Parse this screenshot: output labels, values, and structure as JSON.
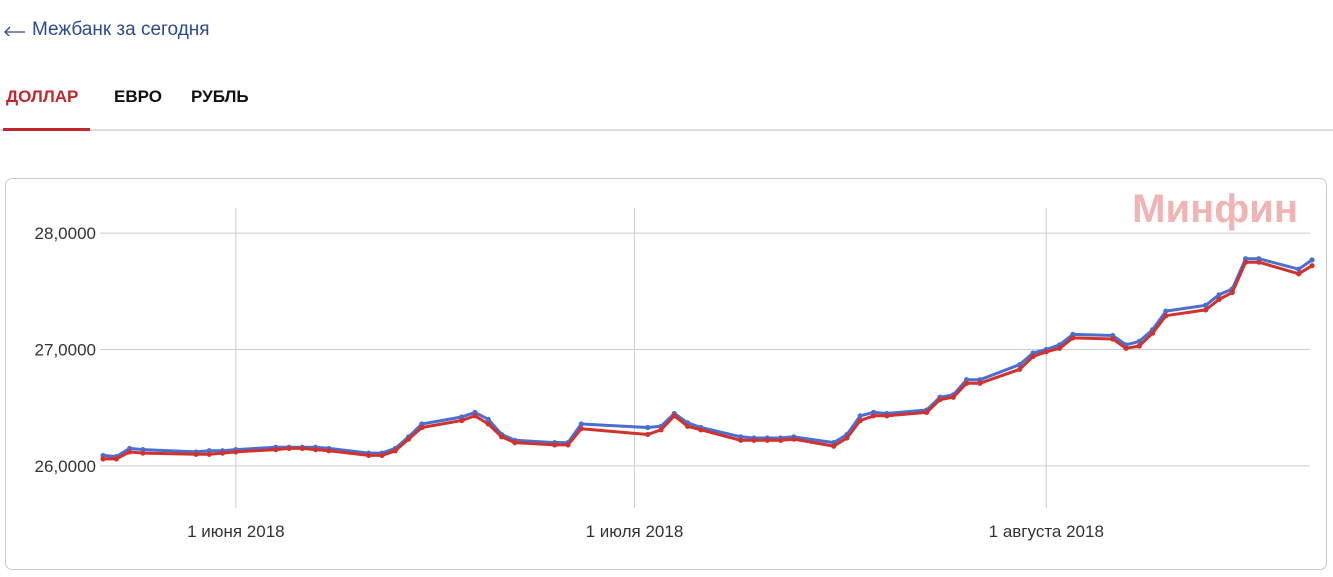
{
  "header": {
    "back_link": "Межбанк за сегодня"
  },
  "tabs": [
    {
      "label": "ДОЛЛАР",
      "active": true
    },
    {
      "label": "ЕВРО",
      "active": false
    },
    {
      "label": "РУБЛЬ",
      "active": false
    }
  ],
  "chart_data": {
    "type": "line",
    "watermark": "Минфин",
    "x": [
      "2018-05-22",
      "2018-05-23",
      "2018-05-24",
      "2018-05-25",
      "2018-05-29",
      "2018-05-30",
      "2018-05-31",
      "2018-06-01",
      "2018-06-04",
      "2018-06-05",
      "2018-06-06",
      "2018-06-07",
      "2018-06-08",
      "2018-06-11",
      "2018-06-12",
      "2018-06-13",
      "2018-06-14",
      "2018-06-15",
      "2018-06-18",
      "2018-06-19",
      "2018-06-20",
      "2018-06-21",
      "2018-06-22",
      "2018-06-25",
      "2018-06-26",
      "2018-06-27",
      "2018-07-02",
      "2018-07-03",
      "2018-07-04",
      "2018-07-05",
      "2018-07-06",
      "2018-07-09",
      "2018-07-10",
      "2018-07-11",
      "2018-07-12",
      "2018-07-13",
      "2018-07-16",
      "2018-07-17",
      "2018-07-18",
      "2018-07-19",
      "2018-07-20",
      "2018-07-23",
      "2018-07-24",
      "2018-07-25",
      "2018-07-26",
      "2018-07-27",
      "2018-07-30",
      "2018-07-31",
      "2018-08-01",
      "2018-08-02",
      "2018-08-03",
      "2018-08-06",
      "2018-08-07",
      "2018-08-08",
      "2018-08-09",
      "2018-08-10",
      "2018-08-13",
      "2018-08-14",
      "2018-08-15",
      "2018-08-16",
      "2018-08-17",
      "2018-08-20",
      "2018-08-21"
    ],
    "series": [
      {
        "color": "#4a6fd1",
        "values": [
          26.09,
          26.08,
          26.15,
          26.14,
          26.12,
          26.13,
          26.13,
          26.14,
          26.16,
          26.16,
          26.16,
          26.16,
          26.15,
          26.11,
          26.11,
          26.15,
          26.25,
          26.36,
          26.42,
          26.46,
          26.4,
          26.27,
          26.22,
          26.2,
          26.2,
          26.36,
          26.33,
          26.34,
          26.45,
          26.37,
          26.33,
          26.25,
          26.24,
          26.24,
          26.24,
          26.25,
          26.2,
          26.27,
          26.43,
          26.46,
          26.45,
          26.48,
          26.59,
          26.61,
          26.74,
          26.74,
          26.87,
          26.97,
          27.0,
          27.04,
          27.13,
          27.12,
          27.04,
          27.07,
          27.17,
          27.33,
          27.38,
          27.47,
          27.52,
          27.78,
          27.78,
          27.69,
          27.77
        ]
      },
      {
        "color": "#d2322d",
        "values": [
          26.06,
          26.06,
          26.12,
          26.11,
          26.1,
          26.1,
          26.11,
          26.12,
          26.14,
          26.15,
          26.15,
          26.14,
          26.13,
          26.09,
          26.09,
          26.13,
          26.23,
          26.33,
          26.39,
          26.43,
          26.36,
          26.25,
          26.2,
          26.18,
          26.18,
          26.32,
          26.27,
          26.31,
          26.43,
          26.34,
          26.31,
          26.22,
          26.22,
          26.22,
          26.22,
          26.23,
          26.17,
          26.24,
          26.39,
          26.43,
          26.43,
          26.46,
          26.57,
          26.59,
          26.71,
          26.71,
          26.83,
          26.94,
          26.98,
          27.01,
          27.1,
          27.09,
          27.01,
          27.03,
          27.14,
          27.29,
          27.34,
          27.43,
          27.49,
          27.75,
          27.75,
          27.65,
          27.72
        ]
      }
    ],
    "xlim": [
      "2018-05-22",
      "2018-08-21"
    ],
    "xticks": [
      {
        "value": "2018-06-01",
        "label": "1 июня 2018"
      },
      {
        "value": "2018-07-01",
        "label": "1 июля 2018"
      },
      {
        "value": "2018-08-01",
        "label": "1 августа 2018"
      }
    ],
    "ylim": [
      25.75,
      28.25
    ],
    "yticks": [
      {
        "value": 26,
        "label": "26,0000"
      },
      {
        "value": 27,
        "label": "27,0000"
      },
      {
        "value": 28,
        "label": "28,0000"
      }
    ],
    "grid": true
  }
}
